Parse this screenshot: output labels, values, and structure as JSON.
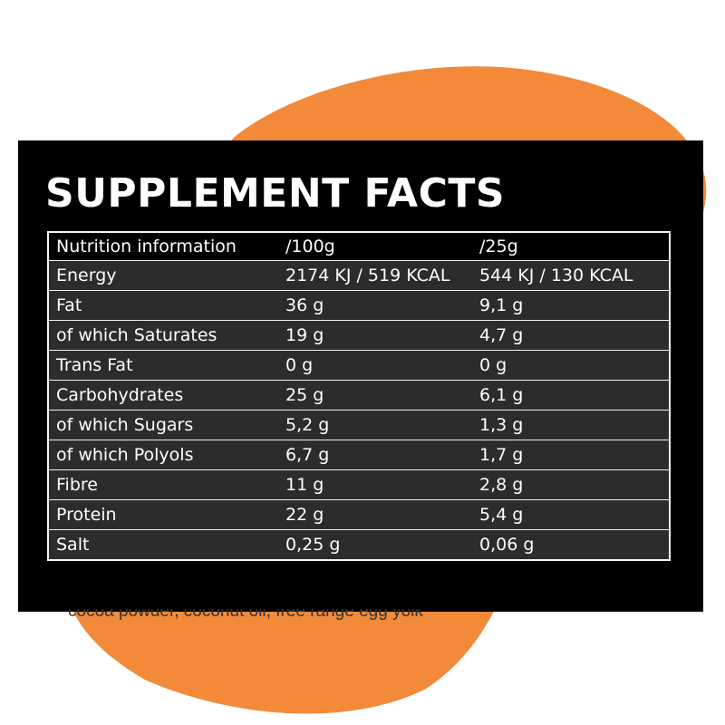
{
  "title": "SUPPLEMENT FACTS",
  "table": {
    "header": [
      "Nutrition information",
      "/100g",
      "/25g"
    ],
    "rows": [
      [
        "Energy",
        "2174 KJ / 519 KCAL",
        "544 KJ / 130 KCAL"
      ],
      [
        "Fat",
        "36 g",
        "9,1 g"
      ],
      [
        "of which Saturates",
        "19 g",
        "4,7 g"
      ],
      [
        "Trans Fat",
        "0 g",
        "0 g"
      ],
      [
        "Carbohydrates",
        "25 g",
        "6,1 g"
      ],
      [
        "of which Sugars",
        "5,2 g",
        "1,3 g"
      ],
      [
        "of which Polyols",
        "6,7 g",
        "1,7 g"
      ],
      [
        "Fibre",
        "11 g",
        "2,8 g"
      ],
      [
        "Protein",
        "22 g",
        "5,4 g"
      ],
      [
        "Salt",
        "0,25 g",
        "0,06 g"
      ]
    ]
  },
  "cut_off_text": "cocoa powder, coconut oil, free range egg yolk",
  "colors": {
    "accent": "#F28A3A",
    "panel": "#000000",
    "row": "#2C2C2C",
    "text": "#FFFFFF"
  }
}
